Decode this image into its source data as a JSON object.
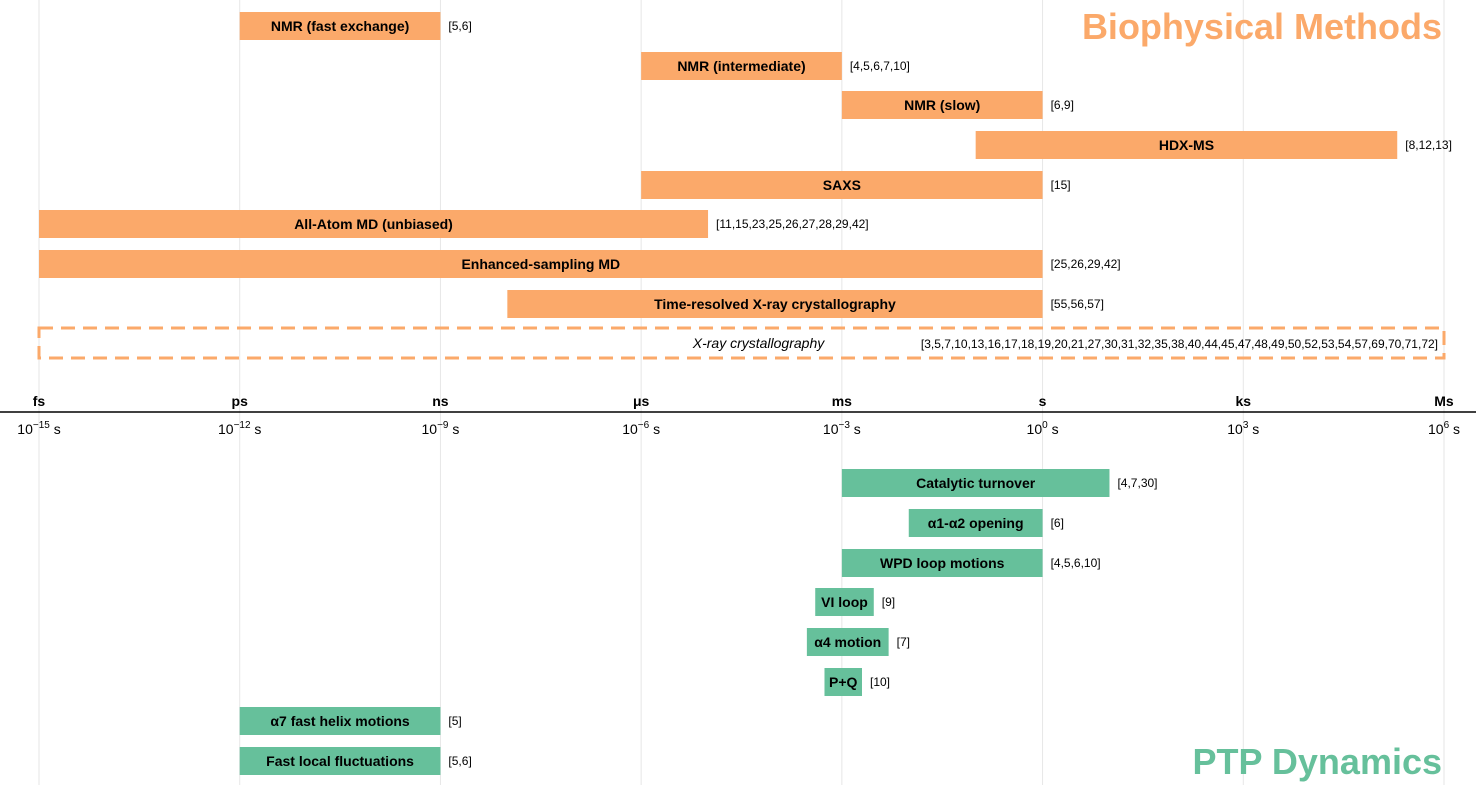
{
  "chart_data": {
    "type": "bar",
    "orientation": "horizontal",
    "x_scale": "log10",
    "x_unit": "s",
    "xlim": [
      1e-15,
      1000000.0
    ],
    "grid": true,
    "colors": {
      "methods": "#fba96a",
      "dynamics": "#66c09b",
      "grid": "#e6e6e6",
      "axis": "#000000"
    },
    "axis": {
      "ticks": [
        {
          "unit": "fs",
          "base": "10",
          "exp": "−15",
          "suffix": " s",
          "value": 1e-15
        },
        {
          "unit": "ps",
          "base": "10",
          "exp": "−12",
          "suffix": " s",
          "value": 1e-12
        },
        {
          "unit": "ns",
          "base": "10",
          "exp": "−9",
          "suffix": " s",
          "value": 1e-09
        },
        {
          "unit": "μs",
          "base": "10",
          "exp": "−6",
          "suffix": " s",
          "value": 1e-06
        },
        {
          "unit": "ms",
          "base": "10",
          "exp": "−3",
          "suffix": " s",
          "value": 0.001
        },
        {
          "unit": "s",
          "base": "10",
          "exp": "0",
          "suffix": " s",
          "value": 1
        },
        {
          "unit": "ks",
          "base": "10",
          "exp": "3",
          "suffix": " s",
          "value": 1000.0
        },
        {
          "unit": "Ms",
          "base": "10",
          "exp": "6",
          "suffix": " s",
          "value": 1000000.0
        }
      ]
    },
    "sections": [
      {
        "title": "Biophysical Methods",
        "color": "#fba96a",
        "bars": [
          {
            "label": "NMR (fast exchange)",
            "ref": "[5,6]",
            "start": 1e-12,
            "end": 1e-09
          },
          {
            "label": "NMR (intermediate)",
            "ref": "[4,5,6,7,10]",
            "start": 1e-06,
            "end": 0.001
          },
          {
            "label": "NMR (slow)",
            "ref": "[6,9]",
            "start": 0.001,
            "end": 1
          },
          {
            "label": "HDX-MS",
            "ref": "[8,12,13]",
            "start": 0.1,
            "end": 200000.0
          },
          {
            "label": "SAXS",
            "ref": "[15]",
            "start": 1e-06,
            "end": 1
          },
          {
            "label": "All-Atom MD (unbiased)",
            "ref": "[11,15,23,25,26,27,28,29,42]",
            "start": 1e-15,
            "end": 1e-05
          },
          {
            "label": "Enhanced-sampling MD",
            "ref": "[25,26,29,42]",
            "start": 1e-15,
            "end": 1
          },
          {
            "label": "Time-resolved X-ray crystallography",
            "ref": "[55,56,57]",
            "start": 1e-08,
            "end": 1
          },
          {
            "label": "X-ray crystallography",
            "ref": "[3,5,7,10,13,16,17,18,19,20,21,27,30,31,32,35,38,40,44,45,47,48,49,50,52,53,54,57,69,70,71,72]",
            "start": 1e-15,
            "end": 1000000.0,
            "style": "dashed"
          }
        ]
      },
      {
        "title": "PTP Dynamics",
        "color": "#66c09b",
        "bars": [
          {
            "label": "Catalytic turnover",
            "ref": "[4,7,30]",
            "start": 0.001,
            "end": 10
          },
          {
            "label": "α1-α2 opening",
            "ref": "[6]",
            "start": 0.01,
            "end": 1
          },
          {
            "label": "WPD loop motions",
            "ref": "[4,5,6,10]",
            "start": 0.001,
            "end": 1
          },
          {
            "label": "VI loop",
            "ref": "[9]",
            "start": 0.0004,
            "end": 0.003
          },
          {
            "label": "α4 motion",
            "ref": "[7]",
            "start": 0.0003,
            "end": 0.005
          },
          {
            "label": "P+Q",
            "ref": "[10]",
            "start": 0.00055,
            "end": 0.002
          },
          {
            "label": "α7 fast helix motions",
            "ref": "[5]",
            "start": 1e-12,
            "end": 1e-09
          },
          {
            "label": "Fast local fluctuations",
            "ref": "[5,6]",
            "start": 1e-12,
            "end": 1e-09
          }
        ]
      }
    ]
  }
}
